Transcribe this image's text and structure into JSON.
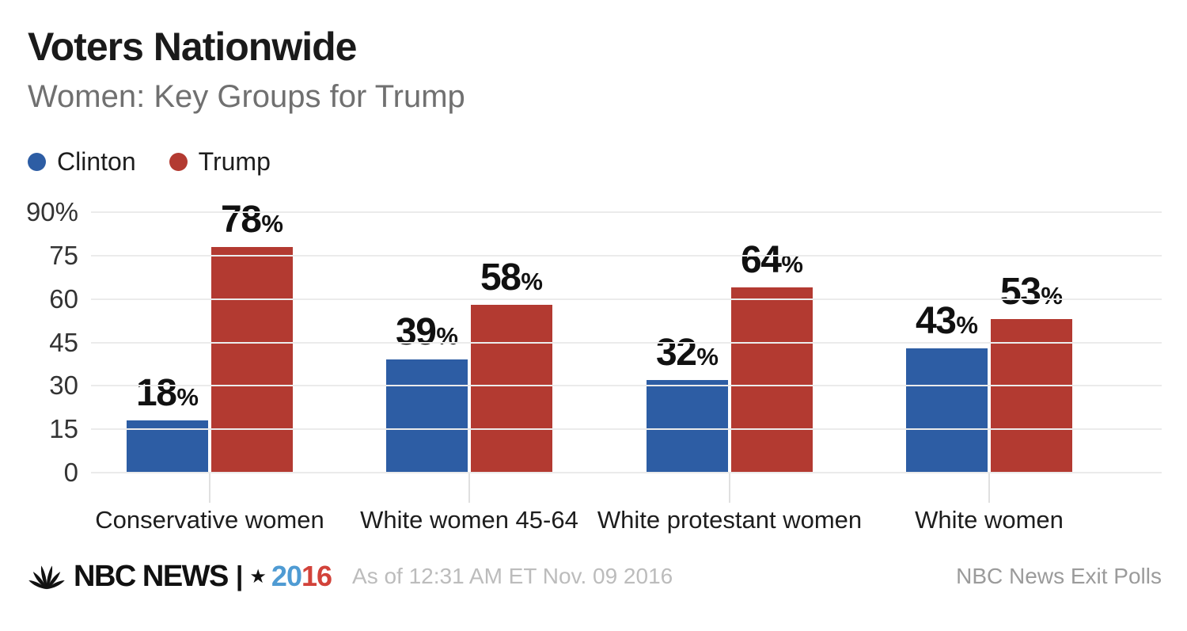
{
  "chart_data": {
    "type": "bar",
    "title": "Voters Nationwide",
    "subtitle": "Women: Key Groups for Trump",
    "categories": [
      "Conservative women",
      "White women 45-64",
      "White protestant women",
      "White women"
    ],
    "series": [
      {
        "name": "Clinton",
        "color": "#2d5da4",
        "values": [
          18,
          39,
          32,
          43
        ]
      },
      {
        "name": "Trump",
        "color": "#b33a31",
        "values": [
          78,
          58,
          64,
          53
        ]
      }
    ],
    "ylim": [
      0,
      90
    ],
    "ytick_labels": [
      "90%",
      "75",
      "60",
      "45",
      "30",
      "15",
      "0"
    ],
    "grid": "horizontal-light",
    "legend_position": "top-left",
    "percent_suffix": "%"
  },
  "footer": {
    "network_logo": "nbc-peacock-icon",
    "brand": "NBC NEWS",
    "separator": "|",
    "star": "★",
    "year_blue": "20",
    "year_red": "16",
    "year_blue_color": "#4f9bd3",
    "year_red_color": "#d2423a",
    "timestamp": "As of 12:31 AM ET Nov. 09 2016",
    "source": "NBC News Exit Polls"
  }
}
